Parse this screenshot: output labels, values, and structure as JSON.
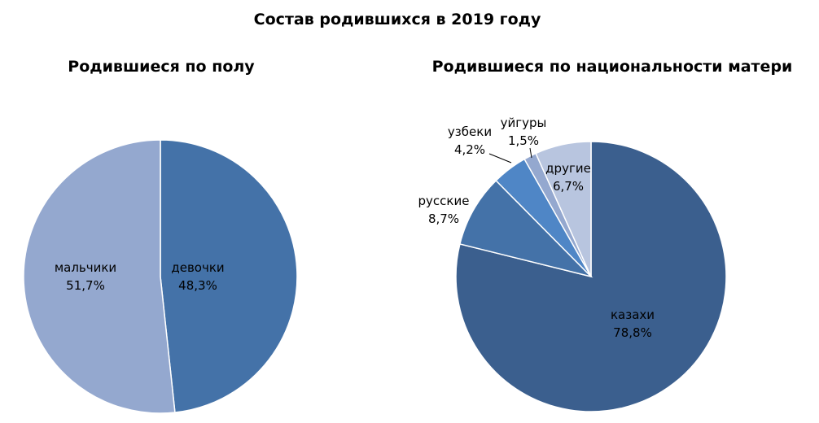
{
  "title": "Состав родившихся в 2019 году",
  "chart_data": [
    {
      "type": "pie",
      "title": "Родившиеся по полу",
      "slices": [
        {
          "label": "девочки",
          "value": 48.3,
          "value_label": "48,3%",
          "color": "#4472a8"
        },
        {
          "label": "мальчики",
          "value": 51.7,
          "value_label": "51,7%",
          "color": "#94a8cf"
        }
      ]
    },
    {
      "type": "pie",
      "title": "Родившиеся по национальности матери",
      "slices": [
        {
          "label": "казахи",
          "value": 78.8,
          "value_label": "78,8%",
          "color": "#3b5f8e"
        },
        {
          "label": "русские",
          "value": 8.7,
          "value_label": "8,7%",
          "color": "#4472a8"
        },
        {
          "label": "узбеки",
          "value": 4.2,
          "value_label": "4,2%",
          "color": "#4f86c6"
        },
        {
          "label": "уйгуры",
          "value": 1.5,
          "value_label": "1,5%",
          "color": "#94a8cf"
        },
        {
          "label": "другие",
          "value": 6.7,
          "value_label": "6,7%",
          "color": "#b8c5df"
        }
      ]
    }
  ]
}
